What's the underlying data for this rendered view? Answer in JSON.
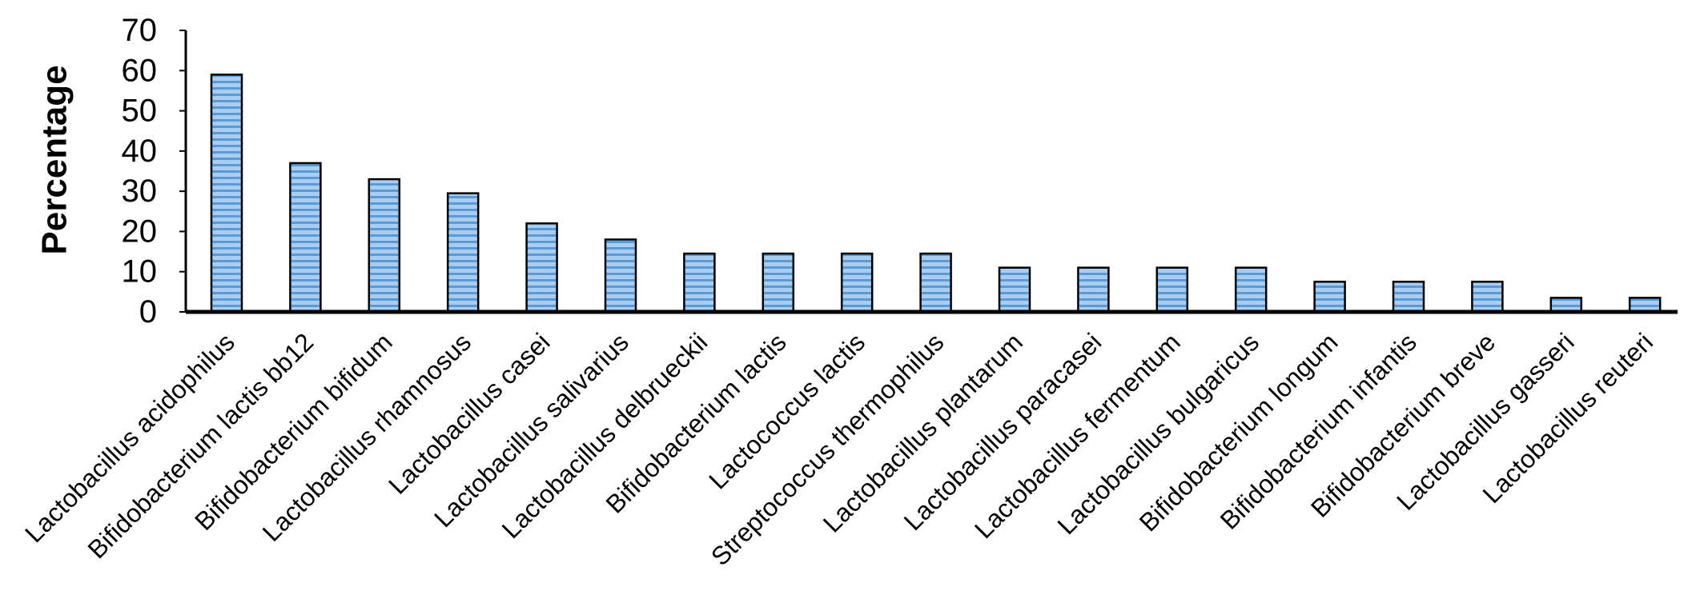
{
  "colors": {
    "bar_fill": "#a9cdf0",
    "bar_stripe": "#5b9bd5",
    "bar_outline": "#000000",
    "axis": "#000000"
  },
  "chart_data": {
    "type": "bar",
    "title": "",
    "xlabel": "",
    "ylabel": "Percentage",
    "ylim": [
      0,
      70
    ],
    "yticks": [
      0,
      10,
      20,
      30,
      40,
      50,
      60,
      70
    ],
    "grid": false,
    "legend": "none",
    "categories": [
      "Lactobacillus acidophilus",
      "Bifidobacterium lactis bb12",
      "Bifidobacterium bifidum",
      "Lactobacillus rhamnosus",
      "Lactobacillus casei",
      "Lactobacillus salivarius",
      "Lactobacillus delbrueckii",
      "Bifidobacterium lactis",
      "Lactococcus lactis",
      "Streptococcus thermophilus",
      "Lactobacillus plantarum",
      "Lactobacillus paracasei",
      "Lactobacillus fermentum",
      "Lactobacillus bulgaricus",
      "Bifidobacterium longum",
      "Bifidobacterium infantis",
      "Bifidobacterium breve",
      "Lactobacillus gasseri",
      "Lactobacillus reuteri"
    ],
    "values": [
      59,
      37,
      33,
      29.5,
      22,
      18,
      14.5,
      14.5,
      14.5,
      14.5,
      11,
      11,
      11,
      11,
      7.5,
      7.5,
      7.5,
      3.5,
      3.5
    ]
  }
}
